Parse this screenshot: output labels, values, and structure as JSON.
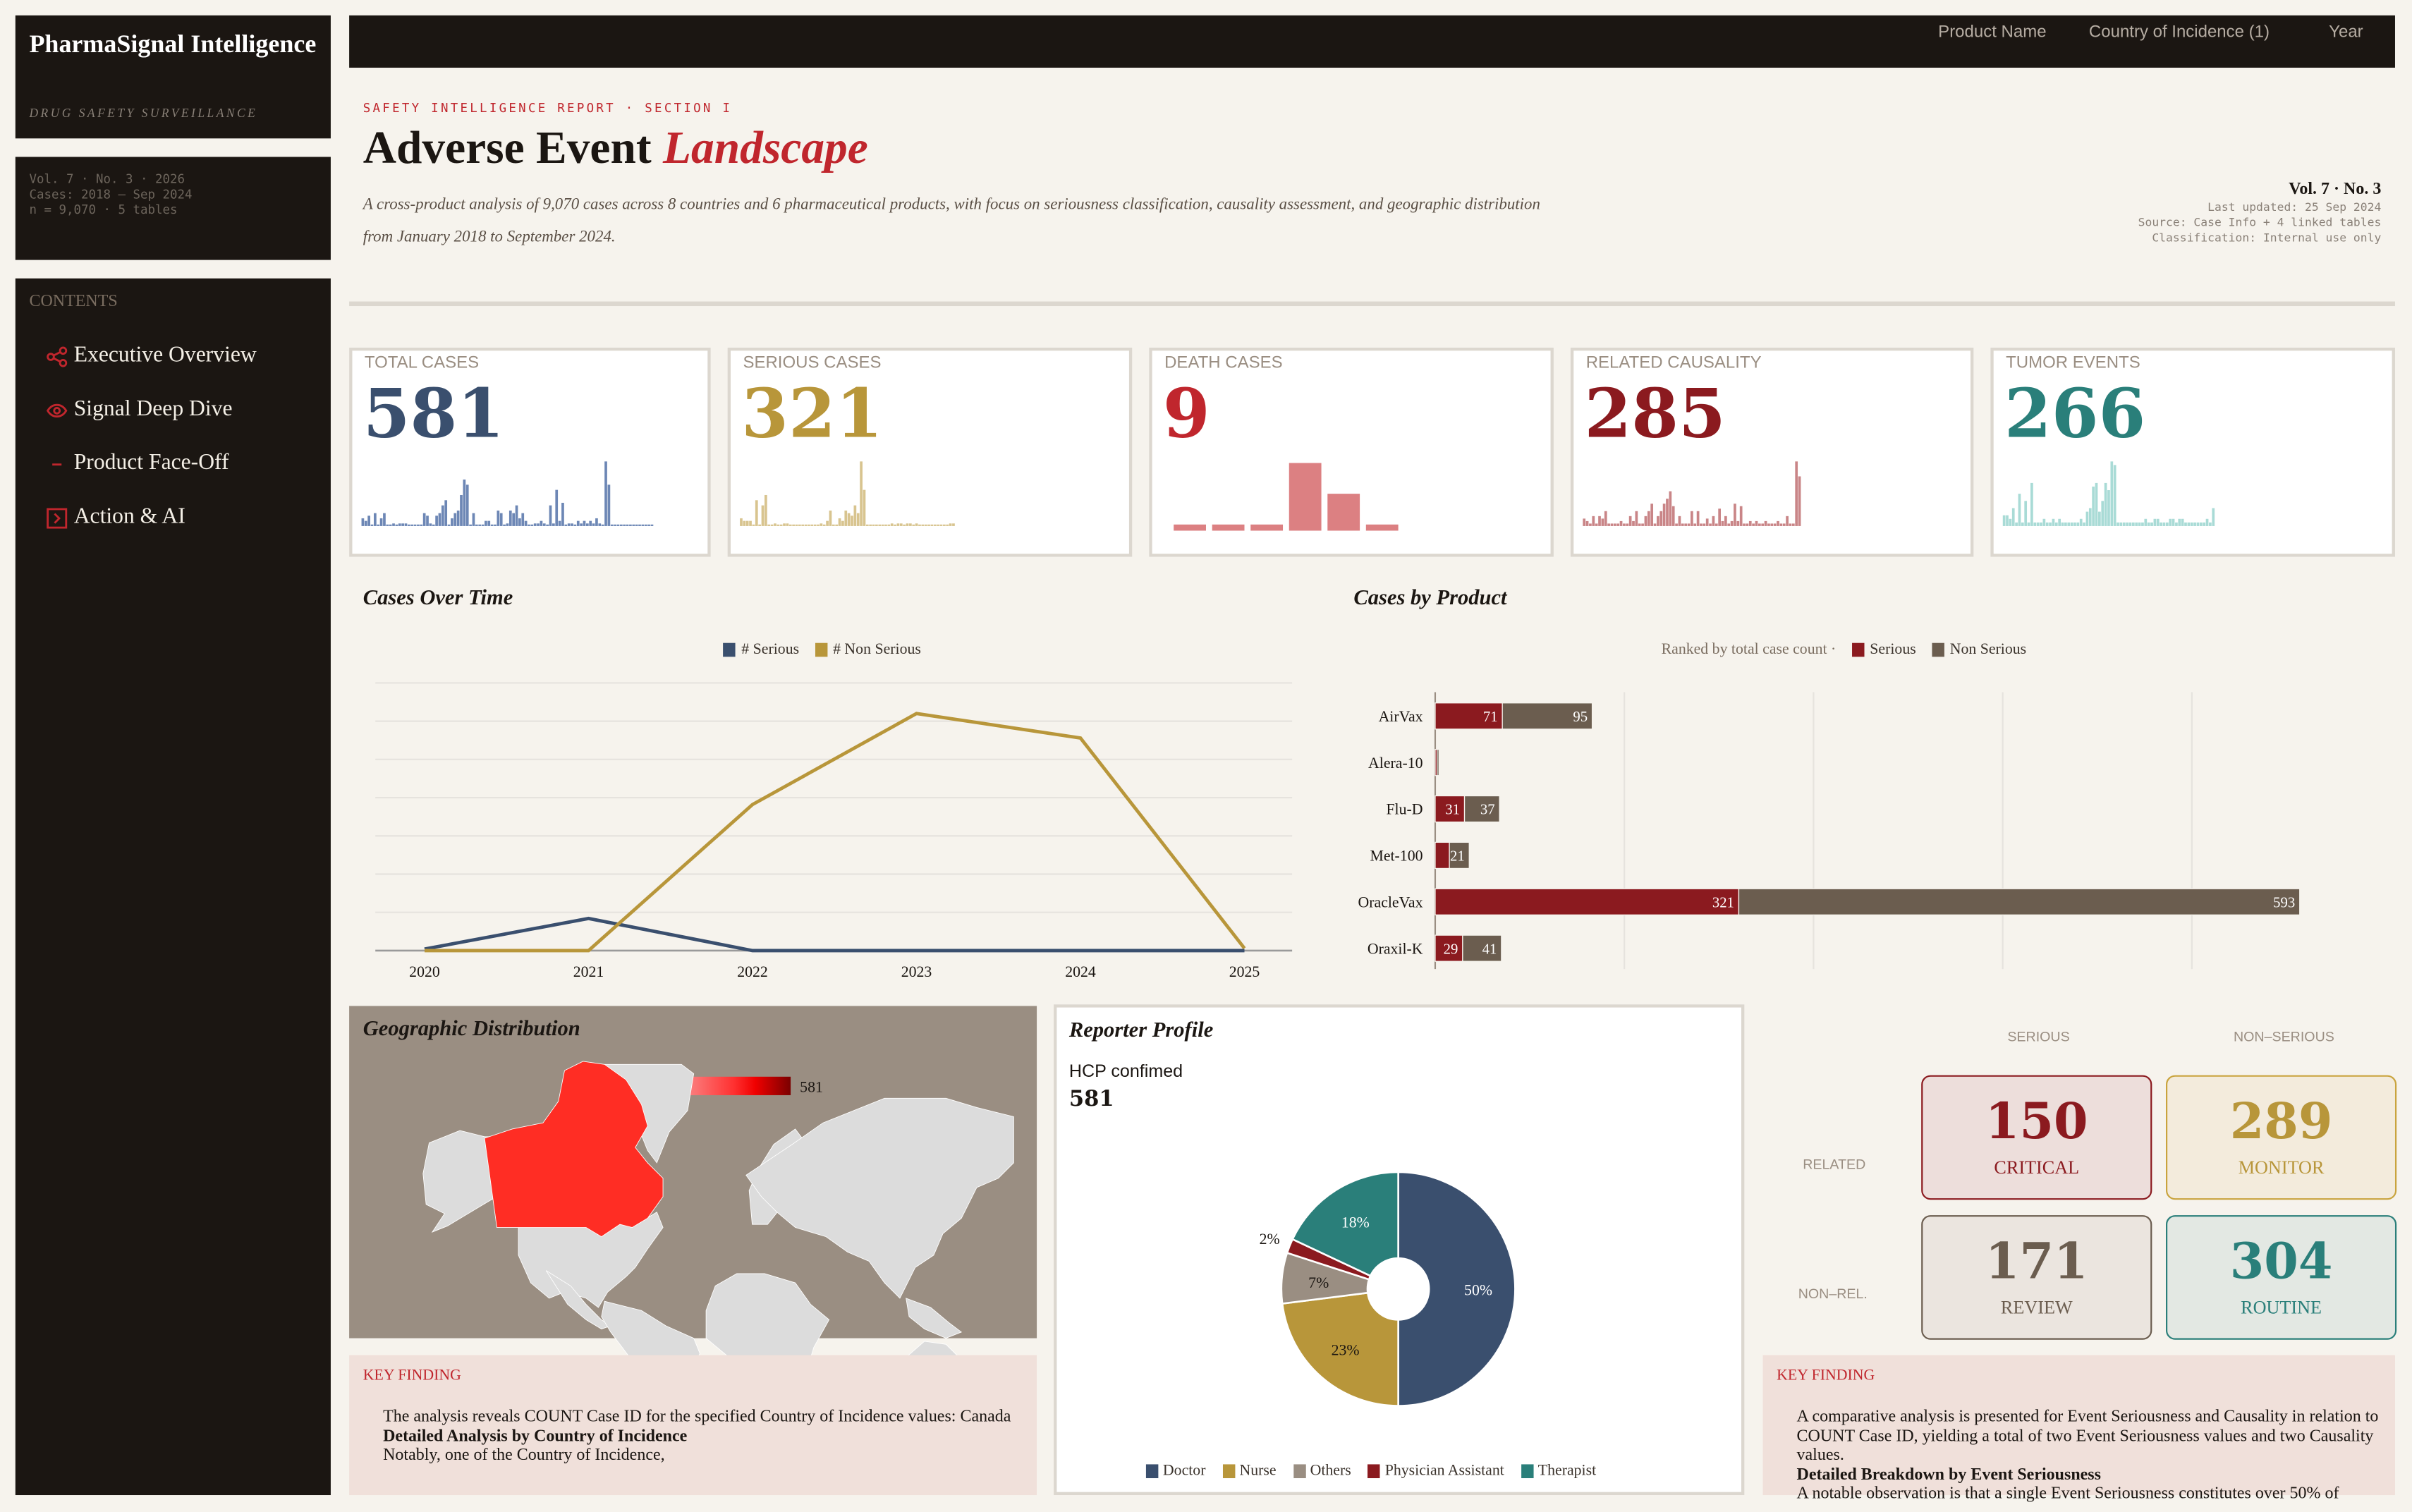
{
  "brand": {
    "title": "PharmaSignal Intelligence",
    "subtitle": "DRUG SAFETY SURVEILLANCE"
  },
  "meta": [
    "Vol. 7 · No. 3 · 2026",
    "Cases: 2018 – Sep 2024",
    "n = 9,070 · 5 tables"
  ],
  "contents": {
    "heading": "CONTENTS",
    "items": [
      {
        "label": "Executive Overview",
        "icon": "share-icon"
      },
      {
        "label": "Signal Deep Dive",
        "icon": "eye-icon"
      },
      {
        "label": "Product Face-Off",
        "icon": "minus-icon"
      },
      {
        "label": "Action & AI",
        "icon": "chevron-box-icon"
      }
    ]
  },
  "filters": [
    "Product Name",
    "Country of Incidence (1)",
    "Year"
  ],
  "header": {
    "eyebrow": "SAFETY INTELLIGENCE REPORT · SECTION I",
    "title_a": "Adverse Event ",
    "title_b": "Landscape",
    "subtitle": "A cross-product analysis of 9,070 cases across 8 countries and 6 pharmaceutical products, with focus on seriousness classification, causality assessment, and geographic distribution from January 2018 to September 2024.",
    "vol": "Vol. 7 · No. 3",
    "updated": "Last updated: 25 Sep 2024",
    "source": "Source: Case Info + 4 linked tables",
    "classification": "Classification: Internal use only"
  },
  "kpis": [
    {
      "label": "TOTAL CASES",
      "value": "581",
      "color": "#3a4f6e",
      "spark_color": "#6d87b5",
      "spark": [
        3,
        2,
        4,
        0,
        5,
        0,
        3,
        5,
        0,
        0,
        1,
        0,
        1,
        1,
        1,
        0,
        0,
        0,
        0,
        0,
        5,
        4,
        1,
        0,
        4,
        5,
        8,
        10,
        0,
        3,
        5,
        6,
        12,
        18,
        16,
        0,
        5,
        0,
        0,
        0,
        2,
        2,
        0,
        0,
        6,
        5,
        0,
        1,
        6,
        5,
        8,
        3,
        5,
        2,
        0,
        0,
        1,
        1,
        2,
        1,
        0,
        8,
        1,
        14,
        2,
        9,
        0,
        1,
        1,
        0,
        2,
        1,
        2,
        1,
        2,
        1,
        3,
        1,
        0,
        25,
        16,
        0,
        0,
        0,
        0,
        0,
        0,
        0,
        0,
        0,
        0,
        0,
        0,
        0,
        0
      ]
    },
    {
      "label": "SERIOUS CASES",
      "value": "321",
      "color": "#b8963a",
      "spark_color": "#d8c48f",
      "spark": [
        3,
        2,
        2,
        2,
        0,
        10,
        0,
        8,
        12,
        0,
        0,
        1,
        0,
        0,
        1,
        1,
        0,
        0,
        0,
        0,
        0,
        0,
        0,
        0,
        0,
        0,
        1,
        0,
        2,
        6,
        0,
        0,
        3,
        2,
        6,
        5,
        4,
        8,
        5,
        25,
        14,
        0,
        0,
        0,
        0,
        0,
        0,
        0,
        0,
        1,
        0,
        1,
        1,
        0,
        1,
        1,
        0,
        1,
        0,
        0,
        0,
        0,
        0,
        0,
        0,
        0,
        0,
        0,
        1,
        1
      ]
    },
    {
      "label": "DEATH CASES",
      "value": "9",
      "color": "#c0262d",
      "spark_color": "#dc8082",
      "spark": [
        1,
        1,
        1,
        11,
        6,
        1
      ]
    },
    {
      "label": "RELATED CAUSALITY",
      "value": "285",
      "color": "#8b1a1f",
      "spark_color": "#c98587",
      "spark": [
        3,
        2,
        1,
        4,
        1,
        4,
        3,
        6,
        1,
        1,
        1,
        1,
        2,
        1,
        1,
        4,
        2,
        6,
        1,
        1,
        4,
        6,
        9,
        1,
        4,
        6,
        9,
        11,
        14,
        8,
        1,
        4,
        1,
        1,
        1,
        6,
        1,
        6,
        1,
        1,
        3,
        1,
        4,
        1,
        7,
        2,
        4,
        1,
        2,
        9,
        2,
        8,
        1,
        1,
        2,
        1,
        2,
        1,
        1,
        2,
        1,
        1,
        1,
        2,
        1,
        1,
        4,
        1,
        1,
        26,
        20
      ]
    },
    {
      "label": "TUMOR EVENTS",
      "value": "266",
      "color": "#2a7f7a",
      "spark_color": "#a9dbd6",
      "spark": [
        3,
        3,
        2,
        5,
        1,
        9,
        1,
        7,
        1,
        12,
        1,
        1,
        1,
        2,
        1,
        1,
        2,
        1,
        2,
        1,
        1,
        1,
        1,
        1,
        1,
        2,
        1,
        4,
        5,
        11,
        12,
        4,
        7,
        12,
        10,
        18,
        17,
        1,
        1,
        1,
        1,
        1,
        1,
        1,
        1,
        1,
        2,
        1,
        1,
        2,
        2,
        1,
        1,
        1,
        2,
        2,
        1,
        2,
        2,
        1,
        1,
        1,
        1,
        1,
        1,
        1,
        2,
        1,
        5
      ]
    }
  ],
  "chart_data": [
    {
      "type": "line",
      "title": "Cases Over Time",
      "x": [
        "2020",
        "2021",
        "2022",
        "2023",
        "2024",
        "2025"
      ],
      "series": [
        {
          "name": "# Serious",
          "color": "#3a4f6e",
          "values": [
            2,
            42,
            0,
            0,
            0,
            0
          ]
        },
        {
          "name": "# Non Serious",
          "color": "#b8963a",
          "values": [
            0,
            0,
            191,
            310,
            278,
            3
          ]
        }
      ],
      "ylim": [
        0,
        350
      ],
      "grid": true,
      "legend": "top-center"
    },
    {
      "type": "bar",
      "stacked": true,
      "orientation": "horizontal",
      "title": "Cases by Product",
      "subtitle": "Ranked by total case count ·",
      "categories": [
        "AirVax",
        "Alera-10",
        "Flu-D",
        "Met-100",
        "OracleVax",
        "Oraxil-K"
      ],
      "series": [
        {
          "name": "Serious",
          "color": "#8b1a1f",
          "values": [
            71,
            2,
            31,
            15,
            321,
            29
          ],
          "labels": [
            "71",
            "",
            "31",
            "",
            "321",
            "29"
          ]
        },
        {
          "name": "Non Serious",
          "color": "#6b5d4f",
          "values": [
            95,
            2,
            37,
            21,
            593,
            41
          ],
          "labels": [
            "95",
            "",
            "37",
            "21",
            "593",
            "41"
          ]
        }
      ],
      "xlim": [
        0,
        914
      ],
      "grid": true,
      "legend": "top-center"
    },
    {
      "type": "pie",
      "title": "Reporter Profile",
      "donut": true,
      "categories": [
        "Doctor",
        "Nurse",
        "Others",
        "Physician Assistant",
        "Therapist"
      ],
      "values": [
        50,
        23,
        7,
        2,
        18
      ],
      "labels": [
        "50%",
        "23%",
        "7%",
        "2%",
        "18%"
      ],
      "colors": [
        "#3a4f6e",
        "#b8963a",
        "#9a8e82",
        "#8b1a1f",
        "#2a7f7a"
      ],
      "legend": "bottom"
    }
  ],
  "geo": {
    "title": "Geographic Distribution",
    "scale_min": "581",
    "scale_max": "581",
    "highlight": "Canada",
    "highlight_color": "#ff2d24"
  },
  "geo_finding": {
    "heading": "KEY FINDING",
    "line1": "The analysis reveals COUNT Case ID for the specified Country of Incidence values: Canada",
    "bold": "Detailed Analysis by Country of Incidence",
    "line2": "Notably, one of the Country of Incidence,"
  },
  "reporter": {
    "label": "HCP confimed",
    "value": "581"
  },
  "matrix": {
    "col_serious": "SERIOUS",
    "col_non": "NON–SERIOUS",
    "row_related": "RELATED",
    "row_non": "NON–REL.",
    "cells": [
      {
        "value": "150",
        "label": "CRITICAL"
      },
      {
        "value": "289",
        "label": "MONITOR"
      },
      {
        "value": "171",
        "label": "REVIEW"
      },
      {
        "value": "304",
        "label": "ROUTINE"
      }
    ]
  },
  "matrix_finding": {
    "heading": "KEY FINDING",
    "line1": "A comparative analysis is presented for Event Seriousness and Causality in relation to COUNT Case ID, yielding a total of two Event Seriousness values and two Causality values.",
    "bold": "Detailed Breakdown by Event Seriousness",
    "line2": "A notable observation is that a single Event Seriousness constitutes over 50% of"
  }
}
